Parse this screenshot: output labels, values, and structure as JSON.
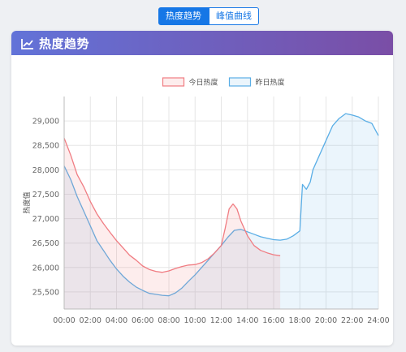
{
  "tabs": [
    {
      "label": "热度趋势",
      "active": true
    },
    {
      "label": "峰值曲线",
      "active": false
    }
  ],
  "card": {
    "title": "热度趋势",
    "icon": "line-chart-icon"
  },
  "colors": {
    "today": "#f07c82",
    "yesterday": "#5aaee6",
    "header_start": "#6273d8",
    "header_end": "#7a4ea6"
  },
  "chart_data": {
    "type": "line",
    "title": "",
    "xlabel": "",
    "ylabel": "热度值",
    "ylim": [
      25150,
      29500
    ],
    "yticks": [
      25500,
      26000,
      26500,
      27000,
      27500,
      28000,
      28500,
      29000
    ],
    "xticks": [
      "00:00",
      "02:00",
      "04:00",
      "06:00",
      "08:00",
      "10:00",
      "12:00",
      "14:00",
      "16:00",
      "18:00",
      "20:00",
      "22:00",
      "24:00"
    ],
    "xlim": [
      0,
      24
    ],
    "grid": true,
    "legend_position": "top-center",
    "series": [
      {
        "name": "今日热度",
        "color": "#f07c82",
        "fill": "rgba(240,124,130,0.14)",
        "x": [
          0,
          0.5,
          1,
          1.5,
          2,
          2.5,
          3,
          3.5,
          4,
          4.5,
          5,
          5.5,
          6,
          6.5,
          7,
          7.5,
          8,
          8.5,
          9,
          9.5,
          10,
          10.5,
          11,
          11.5,
          12,
          12.3,
          12.6,
          12.9,
          13.2,
          13.5,
          14,
          14.5,
          15,
          15.5,
          16,
          16.5
        ],
        "y": [
          28650,
          28300,
          27900,
          27650,
          27350,
          27100,
          26900,
          26720,
          26550,
          26400,
          26250,
          26150,
          26030,
          25960,
          25920,
          25900,
          25930,
          25980,
          26020,
          26050,
          26060,
          26100,
          26180,
          26300,
          26450,
          26800,
          27200,
          27300,
          27200,
          26950,
          26650,
          26450,
          26350,
          26300,
          26260,
          26240
        ]
      },
      {
        "name": "昨日热度",
        "color": "#5aaee6",
        "fill": "rgba(90,174,230,0.12)",
        "x": [
          0,
          0.5,
          1,
          1.5,
          2,
          2.5,
          3,
          3.5,
          4,
          4.5,
          5,
          5.5,
          6,
          6.5,
          7,
          7.5,
          8,
          8.5,
          9,
          9.5,
          10,
          10.5,
          11,
          11.5,
          12,
          12.5,
          13,
          13.5,
          14,
          14.5,
          15,
          15.5,
          16,
          16.5,
          17,
          17.5,
          18,
          18.2,
          18.5,
          18.8,
          19,
          19.5,
          20,
          20.5,
          21,
          21.5,
          22,
          22.5,
          23,
          23.5,
          24
        ],
        "y": [
          28080,
          27800,
          27450,
          27150,
          26850,
          26550,
          26350,
          26150,
          25970,
          25820,
          25700,
          25600,
          25530,
          25470,
          25450,
          25430,
          25420,
          25480,
          25580,
          25720,
          25850,
          26000,
          26150,
          26300,
          26450,
          26620,
          26760,
          26780,
          26730,
          26680,
          26630,
          26600,
          26570,
          26560,
          26580,
          26650,
          26750,
          27700,
          27600,
          27750,
          28000,
          28300,
          28600,
          28900,
          29050,
          29150,
          29120,
          29080,
          29000,
          28950,
          28700
        ]
      }
    ]
  }
}
